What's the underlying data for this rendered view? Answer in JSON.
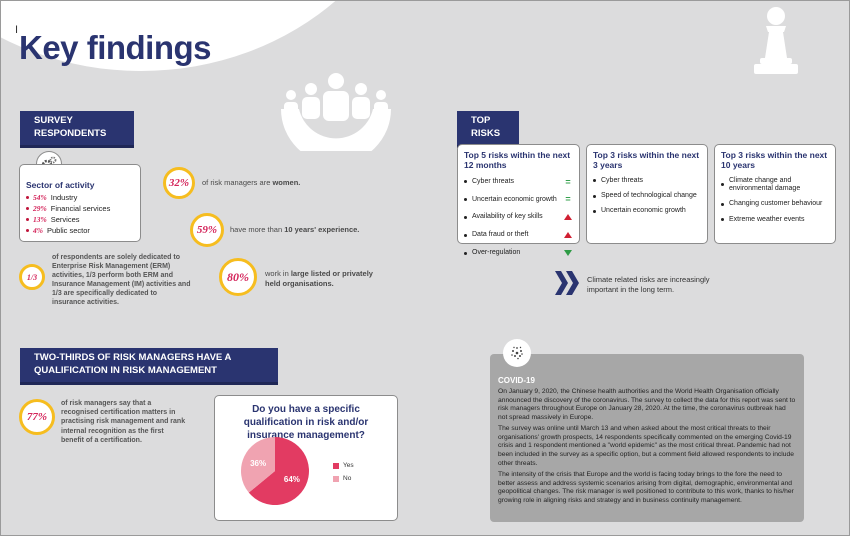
{
  "title": "Key findings",
  "cursor": "I",
  "sections": {
    "survey": "SURVEY RESPONDENTS",
    "top_risks": "TOP RISKS",
    "qualification": "TWO-THIRDS OF RISK MANAGERS HAVE A QUALIFICATION IN RISK MANAGEMENT"
  },
  "sector": {
    "title": "Sector of activity",
    "items": [
      {
        "pct": "54%",
        "label": "Industry"
      },
      {
        "pct": "29%",
        "label": "Financial services"
      },
      {
        "pct": "13%",
        "label": "Services"
      },
      {
        "pct": "4%",
        "label": "Public sector"
      }
    ]
  },
  "stats": {
    "women": {
      "value": "32%",
      "pre": "of risk managers are ",
      "bold": "women."
    },
    "experience": {
      "value": "59%",
      "pre": "have more than ",
      "bold": "10 years' experience."
    },
    "orgs": {
      "value": "80%",
      "pre": "work in ",
      "bold": "large listed or privately held organisations."
    },
    "erm": {
      "value": "1/3",
      "text": "of respondents are solely dedicated to Enterprise Risk Management (ERM) activities, 1/3 perform both ERM and Insurance Management (IM) activities and 1/3 are specifically dedicated to insurance activities."
    },
    "cert": {
      "value": "77%",
      "text": "of risk managers say that a recognised certification matters in practising risk management and rank internal recognition as the first benefit of a certification."
    }
  },
  "risks": {
    "col1": {
      "title": "Top 5 risks within the next 12 months",
      "items": [
        {
          "label": "Cyber threats",
          "trend": "equal"
        },
        {
          "label": "Uncertain economic growth",
          "trend": "equal"
        },
        {
          "label": "Availability of key skills",
          "trend": "up"
        },
        {
          "label": "Data fraud or theft",
          "trend": "up"
        },
        {
          "label": "Over-regulation",
          "trend": "down"
        }
      ]
    },
    "col2": {
      "title": "Top 3 risks within the next 3 years",
      "items": [
        "Cyber threats",
        "Speed of technological change",
        "Uncertain economic growth"
      ]
    },
    "col3": {
      "title": "Top 3 risks within the next 10 years",
      "items": [
        "Climate change and environmental damage",
        "Changing customer behaviour",
        "Extreme weather events"
      ]
    },
    "climate_note": "Climate related risks are increasingly important in the long term."
  },
  "question": {
    "title": "Do you have a specific qualification in risk and/or insurance management?"
  },
  "chart_data": {
    "type": "pie",
    "categories": [
      "Yes",
      "No"
    ],
    "values": [
      64,
      36
    ],
    "labels": [
      "64%",
      "36%"
    ],
    "colors": [
      "#e23b62",
      "#f0a3b1"
    ],
    "legend": "right"
  },
  "covid": {
    "title": "COVID-19",
    "paragraphs": [
      "On January 9, 2020, the Chinese health authorities and the World Health Organisation officially announced the discovery of the coronavirus. The survey to collect the data for this report was sent to risk managers throughout Europe on January 28, 2020. At the time, the coronavirus outbreak had not spread massively in Europe.",
      "The survey was online until March 13 and when asked about the most critical threats to their organisations' growth prospects, 14 respondents specifically commented on the emerging Covid-19 crisis and 1 respondent mentioned a \"world epidemic\" as the most critical threat. Pandemic had not been included in the survey as a specific option, but a comment field allowed respondents to include other threats.",
      "The intensity of the crisis that Europe and the world is facing today brings to the fore the need to better assess and address systemic scenarios arising from digital, demographic, environmental and geopolitical changes. The risk manager is well positioned to contribute to this work, thanks to his/her growing role in aligning risks and strategy and in business continuity management."
    ]
  },
  "colors": {
    "navy": "#2a3470",
    "accent": "#d4245a",
    "ring": "#f6bd1f",
    "background": "#dcdcdd"
  },
  "icons": [
    "people-icon",
    "chess-pawn-icon",
    "gear-icon",
    "chevron-double-right-icon",
    "virus-icon"
  ]
}
